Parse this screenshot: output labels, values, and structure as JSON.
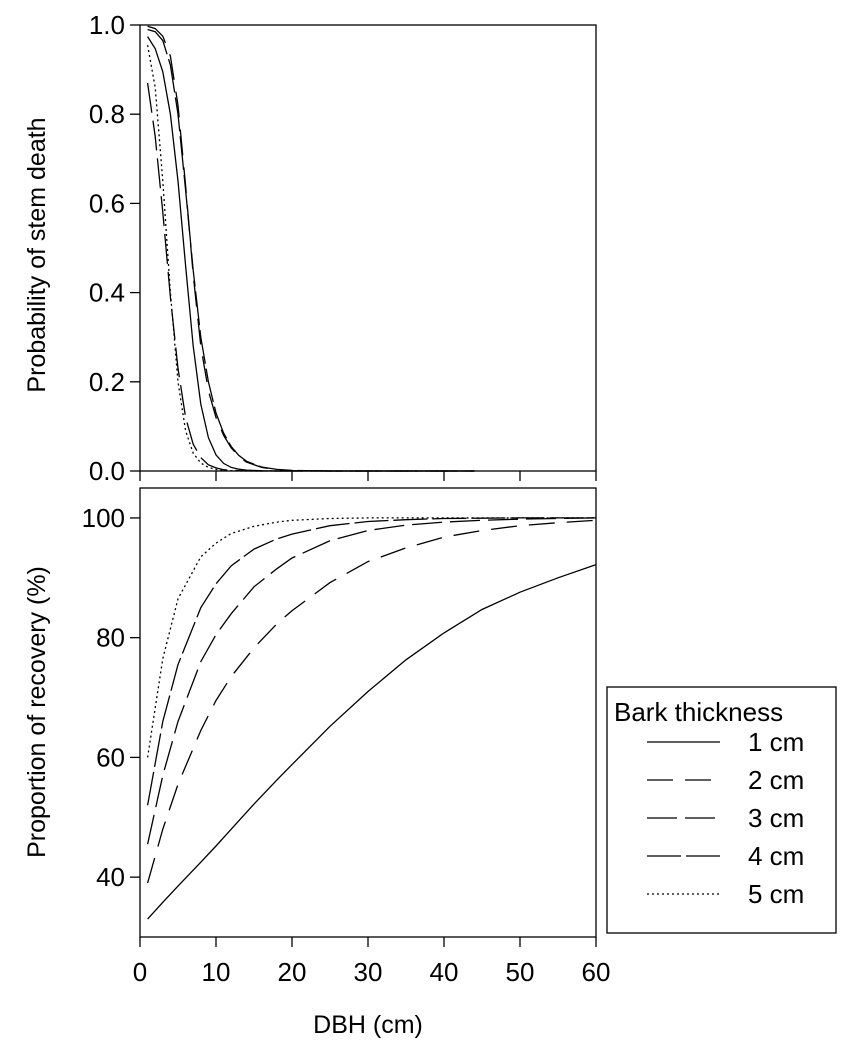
{
  "chart_data": [
    {
      "type": "line",
      "panel": "top",
      "title": "",
      "xlabel": "",
      "ylabel": "Probability of stem death",
      "xlim": [
        0,
        60
      ],
      "ylim": [
        0,
        1
      ],
      "x_ticks": [
        0,
        10,
        20,
        30,
        40,
        50,
        60
      ],
      "y_ticks": [
        0.0,
        0.2,
        0.4,
        0.6,
        0.8,
        1.0
      ],
      "y_tick_labels": [
        "0.0",
        "0.2",
        "0.4",
        "0.6",
        "0.8",
        "1.0"
      ],
      "show_x_tick_labels": false,
      "grid": false,
      "series": [
        {
          "name": "1 cm",
          "x": [
            1,
            2,
            3,
            4,
            5,
            6,
            7,
            8,
            9,
            10,
            11,
            12,
            13,
            14,
            16,
            18,
            20,
            25,
            30,
            35,
            40,
            44
          ],
          "values": [
            0.974,
            0.947,
            0.895,
            0.8,
            0.65,
            0.46,
            0.28,
            0.15,
            0.075,
            0.036,
            0.017,
            0.008,
            0.004,
            0.002,
            0.0004,
            0.0001,
            0,
            0,
            0,
            0,
            0,
            0
          ]
        },
        {
          "name": "2 cm",
          "x": [
            1,
            2,
            3,
            4,
            5,
            6,
            7,
            8,
            9,
            10,
            11,
            12,
            13,
            14,
            16,
            18,
            20,
            25,
            30,
            35,
            40,
            44
          ],
          "values": [
            0.997,
            0.992,
            0.975,
            0.93,
            0.82,
            0.64,
            0.44,
            0.28,
            0.18,
            0.12,
            0.08,
            0.052,
            0.033,
            0.02,
            0.008,
            0.003,
            0.001,
            0,
            0,
            0,
            0,
            0
          ]
        },
        {
          "name": "3 cm",
          "x": [
            1,
            2,
            3,
            4,
            5,
            6,
            7,
            8,
            9,
            10,
            11,
            12,
            13,
            14,
            16,
            18,
            20,
            25,
            30,
            35,
            40,
            44
          ],
          "values": [
            0.87,
            0.75,
            0.58,
            0.39,
            0.23,
            0.12,
            0.06,
            0.03,
            0.014,
            0.007,
            0.003,
            0.0015,
            0.0007,
            0.0003,
            0,
            0,
            0,
            0,
            0,
            0,
            0,
            0
          ]
        },
        {
          "name": "4 cm",
          "x": [
            1,
            2,
            3,
            4,
            5,
            6,
            7,
            8,
            9,
            10,
            11,
            12,
            13,
            14,
            16,
            18,
            20,
            25,
            30,
            35,
            40,
            44
          ],
          "values": [
            0.99,
            0.985,
            0.965,
            0.91,
            0.8,
            0.63,
            0.45,
            0.3,
            0.2,
            0.13,
            0.085,
            0.055,
            0.035,
            0.022,
            0.009,
            0.0035,
            0.0013,
            0,
            0,
            0,
            0,
            0
          ]
        },
        {
          "name": "5 cm",
          "x": [
            1,
            2,
            3,
            4,
            5,
            6,
            7,
            8,
            9,
            10,
            11,
            12,
            13,
            14,
            16,
            18,
            20,
            25,
            30,
            35,
            40,
            44
          ],
          "values": [
            0.955,
            0.86,
            0.65,
            0.4,
            0.2,
            0.09,
            0.04,
            0.018,
            0.008,
            0.0035,
            0.0015,
            0.0007,
            0.0003,
            0.0001,
            0,
            0,
            0,
            0,
            0,
            0,
            0,
            0
          ]
        }
      ]
    },
    {
      "type": "line",
      "panel": "bottom",
      "title": "",
      "xlabel": "DBH (cm)",
      "ylabel": "Proportion of recovery (%)",
      "xlim": [
        0,
        60
      ],
      "ylim": [
        30,
        105
      ],
      "x_ticks": [
        0,
        10,
        20,
        30,
        40,
        50,
        60
      ],
      "x_tick_labels": [
        "0",
        "10",
        "20",
        "30",
        "40",
        "50",
        "60"
      ],
      "y_ticks": [
        40,
        60,
        80,
        100
      ],
      "y_tick_labels": [
        "40",
        "60",
        "80",
        "100"
      ],
      "grid": false,
      "series": [
        {
          "name": "1 cm",
          "x": [
            1,
            3,
            5,
            8,
            10,
            12,
            15,
            18,
            20,
            25,
            30,
            35,
            40,
            45,
            50,
            55,
            60
          ],
          "values": [
            33,
            35.8,
            38.5,
            42.5,
            45.2,
            48,
            52.2,
            56.2,
            58.8,
            65.2,
            71,
            76.3,
            80.8,
            84.7,
            87.6,
            90,
            92.2
          ]
        },
        {
          "name": "2 cm",
          "x": [
            1,
            3,
            5,
            8,
            10,
            12,
            15,
            18,
            20,
            25,
            30,
            35,
            40,
            45,
            50,
            55,
            60
          ],
          "values": [
            39,
            48,
            55.5,
            64.5,
            69.5,
            73.5,
            78.3,
            82.3,
            84.5,
            89.2,
            92.7,
            95,
            96.8,
            97.9,
            98.7,
            99.2,
            99.6
          ]
        },
        {
          "name": "3 cm",
          "x": [
            1,
            3,
            5,
            8,
            10,
            12,
            15,
            18,
            20,
            25,
            30,
            35,
            40,
            45,
            50,
            55,
            60
          ],
          "values": [
            45.5,
            57,
            66,
            76,
            80.5,
            84,
            88.5,
            91.5,
            93.3,
            96.2,
            97.9,
            98.8,
            99.3,
            99.6,
            99.8,
            99.9,
            100
          ]
        },
        {
          "name": "4 cm",
          "x": [
            1,
            3,
            5,
            8,
            10,
            12,
            15,
            18,
            20,
            25,
            30,
            35,
            40,
            45,
            50,
            55,
            60
          ],
          "values": [
            52,
            66,
            75.5,
            85,
            89,
            92,
            94.8,
            96.5,
            97.3,
            98.7,
            99.4,
            99.7,
            99.9,
            99.95,
            100,
            100,
            100
          ]
        },
        {
          "name": "5 cm",
          "x": [
            1,
            3,
            5,
            8,
            10,
            12,
            15,
            18,
            20,
            25,
            30,
            35,
            40,
            45,
            50,
            55,
            60
          ],
          "values": [
            60,
            76.5,
            86.5,
            93.5,
            95.8,
            97.4,
            98.6,
            99.3,
            99.6,
            99.9,
            100,
            100,
            100,
            100,
            100,
            100,
            100
          ]
        }
      ]
    }
  ],
  "legend": {
    "title": "Bark thickness",
    "items": [
      "1 cm",
      "2 cm",
      "3 cm",
      "4 cm",
      "5 cm"
    ]
  }
}
